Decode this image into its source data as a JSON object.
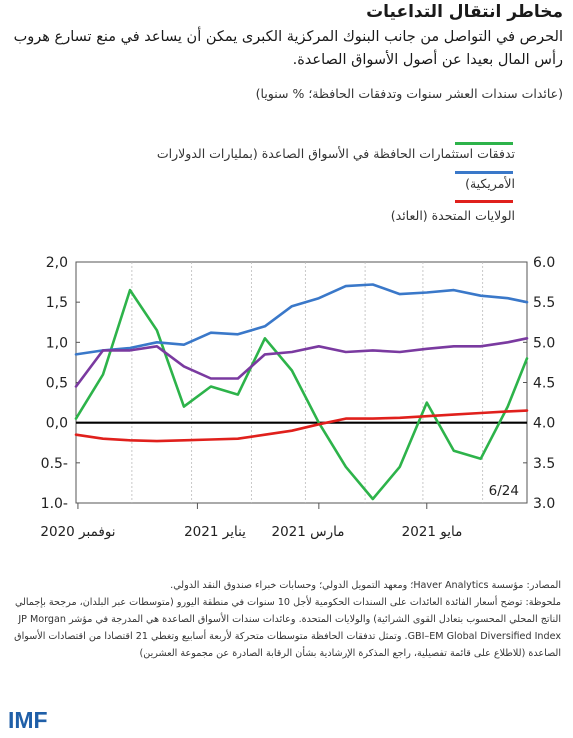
{
  "header": {
    "title": "مخاطر انتقال التداعيات",
    "subtitle": "الحرص في التواصل من جانب البنوك المركزية الكبرى يمكن أن يساعد في منع تسارع هروب رأس المال بعيدا عن أصول الأسواق الصاعدة.",
    "units": "(عائدات سندات العشر سنوات وتدفقات الحافظة؛ % سنويا)"
  },
  "legend": [
    {
      "label": "تدفقات استثمارات الحافظة في الأسواق الصاعدة (بمليارات الدولارات",
      "color": "#2db34a"
    },
    {
      "label": "الأمريكية)",
      "color": "#3a78c9"
    },
    {
      "label": "الولايات المتحدة (العائد)",
      "color": "#e0201c"
    }
  ],
  "chart_data": {
    "type": "line",
    "annotation": "6/24",
    "x_tick_labels": [
      "نوفمبر 2020",
      "يناير 2021",
      "مارس 2021",
      "مايو 2021"
    ],
    "left_axis": {
      "ticks": [
        "2,0",
        "1,5",
        "1,0",
        "0,5",
        "0,0",
        "0.5-",
        "1.0-"
      ],
      "ylim": [
        -1.0,
        2.0
      ]
    },
    "right_axis": {
      "ticks": [
        "6.0",
        "5.5",
        "5.0",
        "4.5",
        "4.0",
        "3.5",
        "3.0"
      ],
      "ylim": [
        3.0,
        6.0
      ]
    },
    "x": [
      "2020-11-02",
      "2020-11-16",
      "2020-11-30",
      "2020-12-14",
      "2020-12-28",
      "2021-01-11",
      "2021-01-25",
      "2021-02-08",
      "2021-02-22",
      "2021-03-08",
      "2021-03-22",
      "2021-04-05",
      "2021-04-19",
      "2021-05-03",
      "2021-05-17",
      "2021-05-31",
      "2021-06-14",
      "2021-06-24"
    ],
    "series": [
      {
        "color": "#2db34a",
        "axis": "left",
        "values": [
          0.05,
          0.6,
          1.65,
          1.15,
          0.2,
          0.45,
          0.35,
          1.05,
          0.65,
          0.0,
          -0.55,
          -0.95,
          -0.55,
          0.25,
          -0.35,
          -0.45,
          0.2,
          0.8
        ]
      },
      {
        "color": "#3a78c9",
        "axis": "left",
        "values": [
          0.85,
          0.9,
          0.93,
          1.0,
          0.97,
          1.12,
          1.1,
          1.2,
          1.45,
          1.55,
          1.7,
          1.72,
          1.6,
          1.62,
          1.65,
          1.58,
          1.55,
          1.5
        ]
      },
      {
        "color": "#e0201c",
        "axis": "left",
        "values": [
          -0.15,
          -0.2,
          -0.22,
          -0.23,
          -0.22,
          -0.21,
          -0.2,
          -0.15,
          -0.1,
          -0.02,
          0.05,
          0.05,
          0.06,
          0.08,
          0.1,
          0.12,
          0.14,
          0.15
        ]
      },
      {
        "color": "#7a3aa0",
        "axis": "right",
        "values": [
          4.45,
          4.9,
          4.9,
          4.95,
          4.7,
          4.55,
          4.55,
          4.85,
          4.88,
          4.95,
          4.88,
          4.9,
          4.88,
          4.92,
          4.95,
          4.95,
          5.0,
          5.05
        ]
      }
    ]
  },
  "notes": {
    "sources": "المصادر: مؤسسة Haver Analytics؛ ومعهد التمويل الدولي؛ وحسابات خبراء صندوق النقد الدولي.",
    "note": "ملحوظة: توضح أسعار الفائدة العائدات على السندات الحكومية لأجل 10 سنوات في منطقة اليورو (متوسطات عبر البلدان، مرجحة بإجمالي الناتج المحلي المحسوب بتعادل القوى الشرائية) والولايات المتحدة. وعائدات سندات الأسواق الصاعدة هي المدرجة في مؤشر JP Morgan GBI–EM Global Diversified Index. وتمثل تدفقات الحافظة متوسطات متحركة لأربعة أسابيع وتغطي 21 اقتصادا من اقتصادات الأسواق الصاعدة (للاطلاع على قائمة تفصيلية، راجع المذكرة الإرشادية بشأن الرقابة الصادرة عن مجموعة العشرين)"
  },
  "logo": "IMF"
}
